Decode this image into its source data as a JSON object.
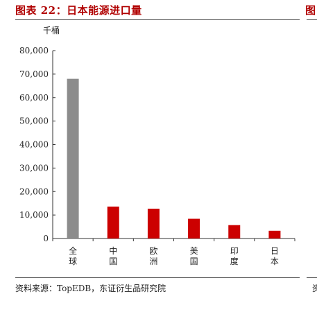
{
  "header": {
    "title": "图表 22：日本能源进口量",
    "next_title_fragment": "图"
  },
  "footer": {
    "source": "资料来源：TopEDB，东证衍生品研究院",
    "next_source_fragment": "资"
  },
  "colors": {
    "title": "#b00000",
    "bar_gray": "#8c8c8c",
    "bar_red": "#cc0000"
  },
  "chart_data": {
    "type": "bar",
    "title": "",
    "unit_label": "千桶",
    "xlabel": "",
    "ylabel": "",
    "categories": [
      "全球",
      "中国",
      "欧洲",
      "美国",
      "印度",
      "日本"
    ],
    "values": [
      68000,
      13600,
      12700,
      8400,
      5700,
      3300
    ],
    "bar_colors": [
      "#8c8c8c",
      "#cc0000",
      "#cc0000",
      "#cc0000",
      "#cc0000",
      "#cc0000"
    ],
    "ylim": [
      0,
      80000
    ],
    "yticks": [
      0,
      10000,
      20000,
      30000,
      40000,
      50000,
      60000,
      70000,
      80000
    ],
    "ytick_labels": [
      "0",
      "10,000",
      "20,000",
      "30,000",
      "40,000",
      "50,000",
      "60,000",
      "70,000",
      "80,000"
    ],
    "grid": false,
    "legend": "none"
  }
}
